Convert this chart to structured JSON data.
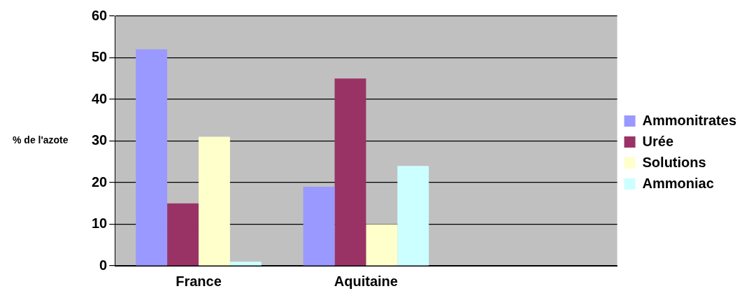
{
  "chart_data": {
    "type": "bar",
    "ylabel": "% de l'azote",
    "categories": [
      "France",
      "Aquitaine",
      null
    ],
    "series": [
      {
        "name": "Ammonitrates",
        "color": "#9999ff",
        "values": [
          52,
          19,
          null
        ]
      },
      {
        "name": "Urée",
        "color": "#993366",
        "values": [
          15,
          45,
          null
        ]
      },
      {
        "name": "Solutions",
        "color": "#ffffcc",
        "values": [
          31,
          10,
          null
        ]
      },
      {
        "name": "Ammoniac",
        "color": "#ccffff",
        "values": [
          1,
          24,
          null
        ]
      }
    ],
    "ylim": [
      0,
      60
    ],
    "yticks": [
      0,
      10,
      20,
      30,
      40,
      50,
      60
    ],
    "grid": "y",
    "legend": "right"
  }
}
